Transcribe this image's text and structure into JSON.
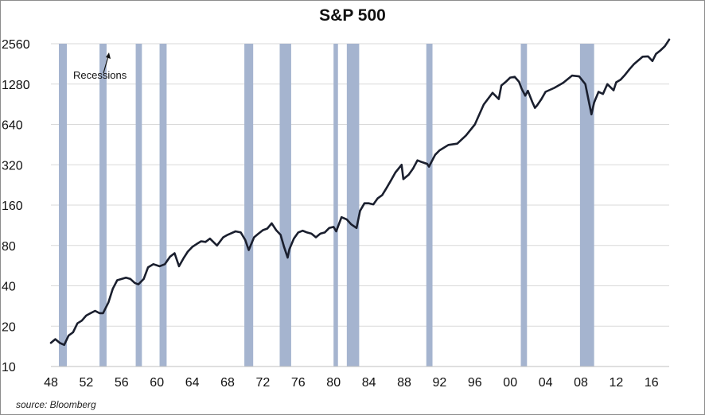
{
  "chart_data": {
    "type": "line",
    "title": "S&P 500",
    "source": "source: Bloomberg",
    "y_scale": "log2",
    "ylim": [
      10,
      2560
    ],
    "xlim": [
      1948,
      2018
    ],
    "y_ticks": [
      10,
      20,
      40,
      80,
      160,
      320,
      640,
      1280,
      2560
    ],
    "y_tick_labels": [
      "10",
      "20",
      "40",
      "80",
      "160",
      "320",
      "640",
      "1280",
      "2560"
    ],
    "x_ticks": [
      1948,
      1952,
      1956,
      1960,
      1964,
      1968,
      1972,
      1976,
      1980,
      1984,
      1988,
      1992,
      1996,
      2000,
      2004,
      2008,
      2012,
      2016
    ],
    "x_tick_labels": [
      "48",
      "52",
      "56",
      "60",
      "64",
      "68",
      "72",
      "76",
      "80",
      "84",
      "88",
      "92",
      "96",
      "00",
      "04",
      "08",
      "12",
      "16"
    ],
    "grid": "horizontal",
    "annotation": "Recessions",
    "recession_color": "#a5b4cf",
    "line_color": "#1a1f2e",
    "recessions": [
      [
        1948.9,
        1949.8
      ],
      [
        1953.5,
        1954.3
      ],
      [
        1957.6,
        1958.3
      ],
      [
        1960.3,
        1961.1
      ],
      [
        1969.9,
        1970.9
      ],
      [
        1973.9,
        1975.2
      ],
      [
        1980.0,
        1980.5
      ],
      [
        1981.5,
        1982.9
      ],
      [
        1990.5,
        1991.2
      ],
      [
        2001.2,
        2001.9
      ],
      [
        2007.9,
        2009.5
      ]
    ],
    "series": [
      {
        "x": [
          1948.0,
          1948.5,
          1949.0,
          1949.5,
          1950.0,
          1950.5,
          1951.0,
          1951.5,
          1952.0,
          1952.5,
          1953.0,
          1953.5,
          1953.9,
          1954.5,
          1955.0,
          1955.5,
          1956.0,
          1956.5,
          1957.0,
          1957.5,
          1957.9,
          1958.5,
          1959.0,
          1959.6,
          1960.3,
          1960.9,
          1961.5,
          1962.0,
          1962.5,
          1963.0,
          1963.5,
          1964.0,
          1964.5,
          1965.0,
          1965.5,
          1966.0,
          1966.8,
          1967.5,
          1968.0,
          1968.9,
          1969.5,
          1970.0,
          1970.4,
          1971.0,
          1971.5,
          1972.0,
          1972.5,
          1973.0,
          1973.5,
          1974.0,
          1974.4,
          1974.8,
          1975.0,
          1975.5,
          1976.0,
          1976.5,
          1977.0,
          1977.5,
          1978.0,
          1978.5,
          1979.0,
          1979.5,
          1980.0,
          1980.3,
          1980.9,
          1981.5,
          1982.0,
          1982.6,
          1983.0,
          1983.5,
          1984.0,
          1984.5,
          1985.0,
          1985.5,
          1986.0,
          1986.5,
          1987.0,
          1987.7,
          1987.9,
          1988.5,
          1989.0,
          1989.5,
          1990.0,
          1990.6,
          1990.8,
          1991.5,
          1992.0,
          1993.0,
          1994.0,
          1995.0,
          1996.0,
          1997.0,
          1998.0,
          1998.7,
          1999.0,
          1999.5,
          2000.0,
          2000.5,
          2001.0,
          2001.3,
          2001.7,
          2002.0,
          2002.5,
          2002.8,
          2003.0,
          2003.5,
          2004.0,
          2005.0,
          2006.0,
          2007.0,
          2007.8,
          2008.5,
          2009.2,
          2009.5,
          2010.0,
          2010.5,
          2011.0,
          2011.7,
          2012.0,
          2012.5,
          2013.0,
          2013.5,
          2014.0,
          2015.0,
          2015.6,
          2016.1,
          2016.5,
          2017.0,
          2017.5,
          2018.0
        ],
        "y": [
          15,
          16,
          15,
          14.5,
          17,
          18,
          21,
          22,
          24,
          25,
          26,
          25,
          25,
          30,
          38,
          44,
          45,
          46,
          45,
          42,
          41,
          45,
          55,
          58,
          56,
          58,
          66,
          70,
          56,
          64,
          72,
          78,
          82,
          86,
          85,
          90,
          80,
          92,
          96,
          102,
          100,
          88,
          74,
          92,
          98,
          104,
          107,
          117,
          104,
          96,
          78,
          65,
          75,
          90,
          100,
          103,
          100,
          98,
          92,
          98,
          100,
          108,
          110,
          102,
          130,
          125,
          115,
          108,
          145,
          165,
          165,
          162,
          180,
          190,
          215,
          245,
          280,
          320,
          250,
          270,
          300,
          345,
          335,
          325,
          310,
          380,
          410,
          450,
          460,
          530,
          640,
          900,
          1100,
          990,
          1250,
          1330,
          1430,
          1450,
          1330,
          1180,
          1050,
          1140,
          940,
          850,
          880,
          980,
          1120,
          1200,
          1310,
          1480,
          1460,
          1280,
          760,
          930,
          1120,
          1080,
          1280,
          1150,
          1320,
          1380,
          1500,
          1650,
          1800,
          2050,
          2060,
          1900,
          2150,
          2280,
          2450,
          2750
        ]
      }
    ]
  }
}
